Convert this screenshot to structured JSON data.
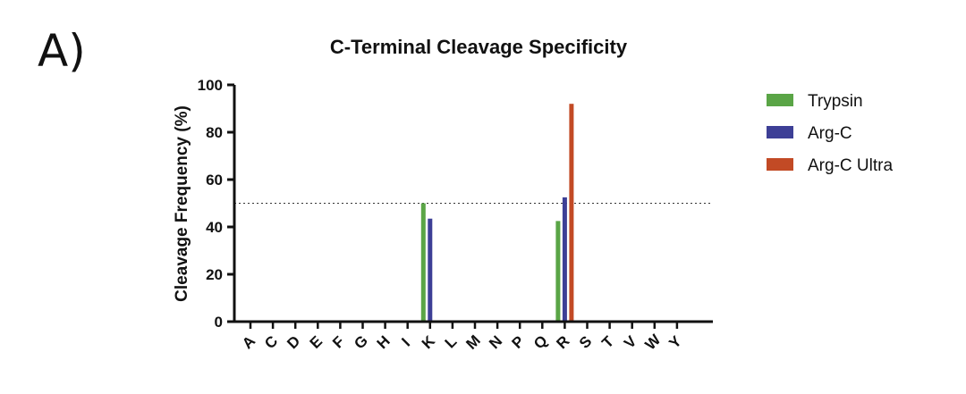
{
  "panel_label": "A)",
  "chart_data": {
    "type": "bar",
    "title": "C-Terminal Cleavage Specificity",
    "xlabel": "",
    "ylabel": "Cleavage Frequency (%)",
    "ylim": [
      0,
      100
    ],
    "yticks": [
      0,
      20,
      40,
      60,
      80,
      100
    ],
    "reference_line": 50,
    "grid": false,
    "legend_position": "right",
    "categories": [
      "A",
      "C",
      "D",
      "E",
      "F",
      "G",
      "H",
      "I",
      "K",
      "L",
      "M",
      "N",
      "P",
      "Q",
      "R",
      "S",
      "T",
      "V",
      "W",
      "Y"
    ],
    "series": [
      {
        "name": "Trypsin",
        "color": "#5aa546",
        "values": [
          0,
          0,
          0,
          0,
          0,
          0,
          0,
          0,
          50,
          0,
          0,
          0,
          0,
          0,
          42.5,
          0,
          0,
          0,
          0,
          0
        ]
      },
      {
        "name": "Arg-C",
        "color": "#3d3f96",
        "values": [
          0,
          0,
          0,
          0,
          0,
          0,
          0,
          0,
          43.5,
          0,
          0,
          0,
          0,
          0,
          52.5,
          0,
          0,
          0,
          0,
          0
        ]
      },
      {
        "name": "Arg-C Ultra",
        "color": "#c24a25",
        "values": [
          0,
          0,
          0,
          0,
          0,
          0,
          0,
          0,
          0,
          0.5,
          0,
          0,
          0,
          0,
          92,
          0,
          0,
          0,
          0,
          0
        ]
      }
    ]
  }
}
